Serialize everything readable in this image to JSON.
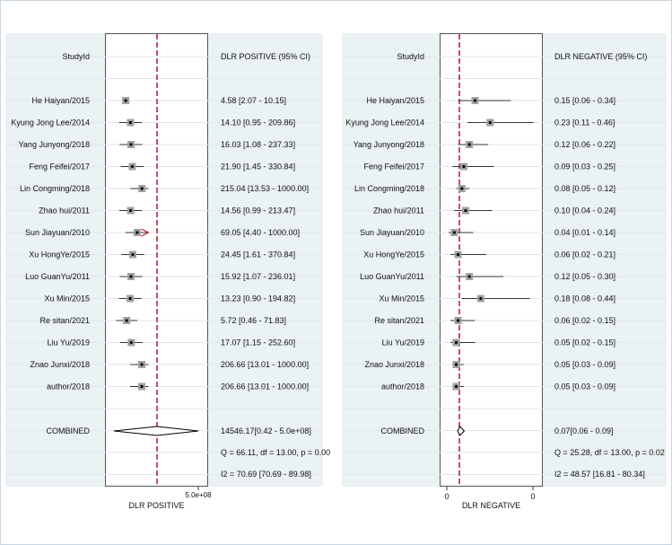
{
  "chart_data": [
    {
      "type": "forest",
      "title": "DLR POSITIVE",
      "header_left": "StudyId",
      "header_right": "DLR POSITIVE (95% CI)",
      "xlabel": "DLR POSITIVE",
      "x_tick_label": "5.0e+08",
      "studies": [
        {
          "label": "He Haiyan/2015",
          "ci_text": "4.58 [2.07 - 10.15]",
          "est": 4.58,
          "lo": 2.07,
          "hi": 10.15,
          "truncated": false
        },
        {
          "label": "Kyung Jong Lee/2014",
          "ci_text": "14.10 [0.95 - 209.86]",
          "est": 14.1,
          "lo": 0.95,
          "hi": 209.86,
          "truncated": false
        },
        {
          "label": "Yang Junyong/2018",
          "ci_text": "16.03 [1.08 - 237.33]",
          "est": 16.03,
          "lo": 1.08,
          "hi": 237.33,
          "truncated": false
        },
        {
          "label": "Feng Feifei/2017",
          "ci_text": "21.90 [1.45 - 330.84]",
          "est": 21.9,
          "lo": 1.45,
          "hi": 330.84,
          "truncated": false
        },
        {
          "label": "Lin Congming/2018",
          "ci_text": "215.04 [13.53 - 1000.00]",
          "est": 215.04,
          "lo": 13.53,
          "hi": 1000.0,
          "truncated": false
        },
        {
          "label": "Zhao hui/2011",
          "ci_text": "14.56 [0.99 - 213.47]",
          "est": 14.56,
          "lo": 0.99,
          "hi": 213.47,
          "truncated": false
        },
        {
          "label": "Sun Jiayuan/2010",
          "ci_text": "69.05 [4.40 - 1000.00]",
          "est": 69.05,
          "lo": 4.4,
          "hi": 1000.0,
          "truncated": true
        },
        {
          "label": "Xu HongYe/2015",
          "ci_text": "24.45 [1.61 - 370.84]",
          "est": 24.45,
          "lo": 1.61,
          "hi": 370.84,
          "truncated": false
        },
        {
          "label": "Luo GuanYu/2011",
          "ci_text": "15.92 [1.07 - 236.01]",
          "est": 15.92,
          "lo": 1.07,
          "hi": 236.01,
          "truncated": false
        },
        {
          "label": "Xu Min/2015",
          "ci_text": "13.23 [0.90 - 194.82]",
          "est": 13.23,
          "lo": 0.9,
          "hi": 194.82,
          "truncated": false
        },
        {
          "label": "Re sitan/2021",
          "ci_text": "5.72 [0.46 - 71.83]",
          "est": 5.72,
          "lo": 0.46,
          "hi": 71.83,
          "truncated": false
        },
        {
          "label": "Liu Yu/2019",
          "ci_text": "17.07 [1.15 - 252.60]",
          "est": 17.07,
          "lo": 1.15,
          "hi": 252.6,
          "truncated": false
        },
        {
          "label": "Znao Junxi/2018",
          "ci_text": "206.66 [13.01 - 1000.00]",
          "est": 206.66,
          "lo": 13.01,
          "hi": 1000.0,
          "truncated": false
        },
        {
          "label": "author/2018",
          "ci_text": "206.66 [13.01 - 1000.00]",
          "est": 206.66,
          "lo": 13.01,
          "hi": 1000.0,
          "truncated": false
        }
      ],
      "combined": {
        "label": "COMBINED",
        "ci_text": "14546.17[0.42 -  5.0e+08]",
        "est": 14546.17,
        "lo": 0.42,
        "hi": 500000000
      },
      "q_text": "Q = 66.11, df = 13.00, p =  0.00",
      "i2_text": "I2 = 70.69 [70.69 - 89.98]"
    },
    {
      "type": "forest",
      "title": "DLR NEGATIVE",
      "header_left": "StudyId",
      "header_right": "DLR NEGATIVE (95% CI)",
      "xlabel": "DLR NEGATIVE",
      "x_tick_labels": [
        "0",
        "0"
      ],
      "studies": [
        {
          "label": "He Haiyan/2015",
          "ci_text": "0.15 [0.06 - 0.34]",
          "est": 0.15,
          "lo": 0.06,
          "hi": 0.34
        },
        {
          "label": "Kyung Jong Lee/2014",
          "ci_text": "0.23 [0.11 - 0.46]",
          "est": 0.23,
          "lo": 0.11,
          "hi": 0.46
        },
        {
          "label": "Yang Junyong/2018",
          "ci_text": "0.12 [0.06 - 0.22]",
          "est": 0.12,
          "lo": 0.06,
          "hi": 0.22
        },
        {
          "label": "Feng Feifei/2017",
          "ci_text": "0.09 [0.03 - 0.25]",
          "est": 0.09,
          "lo": 0.03,
          "hi": 0.25
        },
        {
          "label": "Lin Congming/2018",
          "ci_text": "0.08 [0.05 - 0.12]",
          "est": 0.08,
          "lo": 0.05,
          "hi": 0.12
        },
        {
          "label": "Zhao hui/2011",
          "ci_text": "0.10 [0.04 - 0.24]",
          "est": 0.1,
          "lo": 0.04,
          "hi": 0.24
        },
        {
          "label": "Sun Jiayuan/2010",
          "ci_text": "0.04 [0.01 - 0.14]",
          "est": 0.04,
          "lo": 0.01,
          "hi": 0.14
        },
        {
          "label": "Xu HongYe/2015",
          "ci_text": "0.06 [0.02 - 0.21]",
          "est": 0.06,
          "lo": 0.02,
          "hi": 0.21
        },
        {
          "label": "Luo GuanYu/2011",
          "ci_text": "0.12 [0.05 - 0.30]",
          "est": 0.12,
          "lo": 0.05,
          "hi": 0.3
        },
        {
          "label": "Xu Min/2015",
          "ci_text": "0.18 [0.08 - 0.44]",
          "est": 0.18,
          "lo": 0.08,
          "hi": 0.44
        },
        {
          "label": "Re sitan/2021",
          "ci_text": "0.06 [0.02 - 0.15]",
          "est": 0.06,
          "lo": 0.02,
          "hi": 0.15
        },
        {
          "label": "Liu Yu/2019",
          "ci_text": "0.05 [0.02 - 0.15]",
          "est": 0.05,
          "lo": 0.02,
          "hi": 0.15
        },
        {
          "label": "Znao Junxi/2018",
          "ci_text": "0.05 [0.03 - 0.09]",
          "est": 0.05,
          "lo": 0.03,
          "hi": 0.09
        },
        {
          "label": "author/2018",
          "ci_text": "0.05 [0.03 - 0.09]",
          "est": 0.05,
          "lo": 0.03,
          "hi": 0.09
        }
      ],
      "combined": {
        "label": "COMBINED",
        "ci_text": "0.07[0.06 - 0.09]",
        "est": 0.07,
        "lo": 0.06,
        "hi": 0.09
      },
      "q_text": "Q = 25.28, df = 13.00, p =  0.02",
      "i2_text": "I2 = 48.57 [16.81 - 80.34]"
    }
  ],
  "colors": {
    "reference_line": "#c0142b",
    "box": "#a0a0a0",
    "line": "#333333",
    "grid": "#dfe7ea"
  }
}
